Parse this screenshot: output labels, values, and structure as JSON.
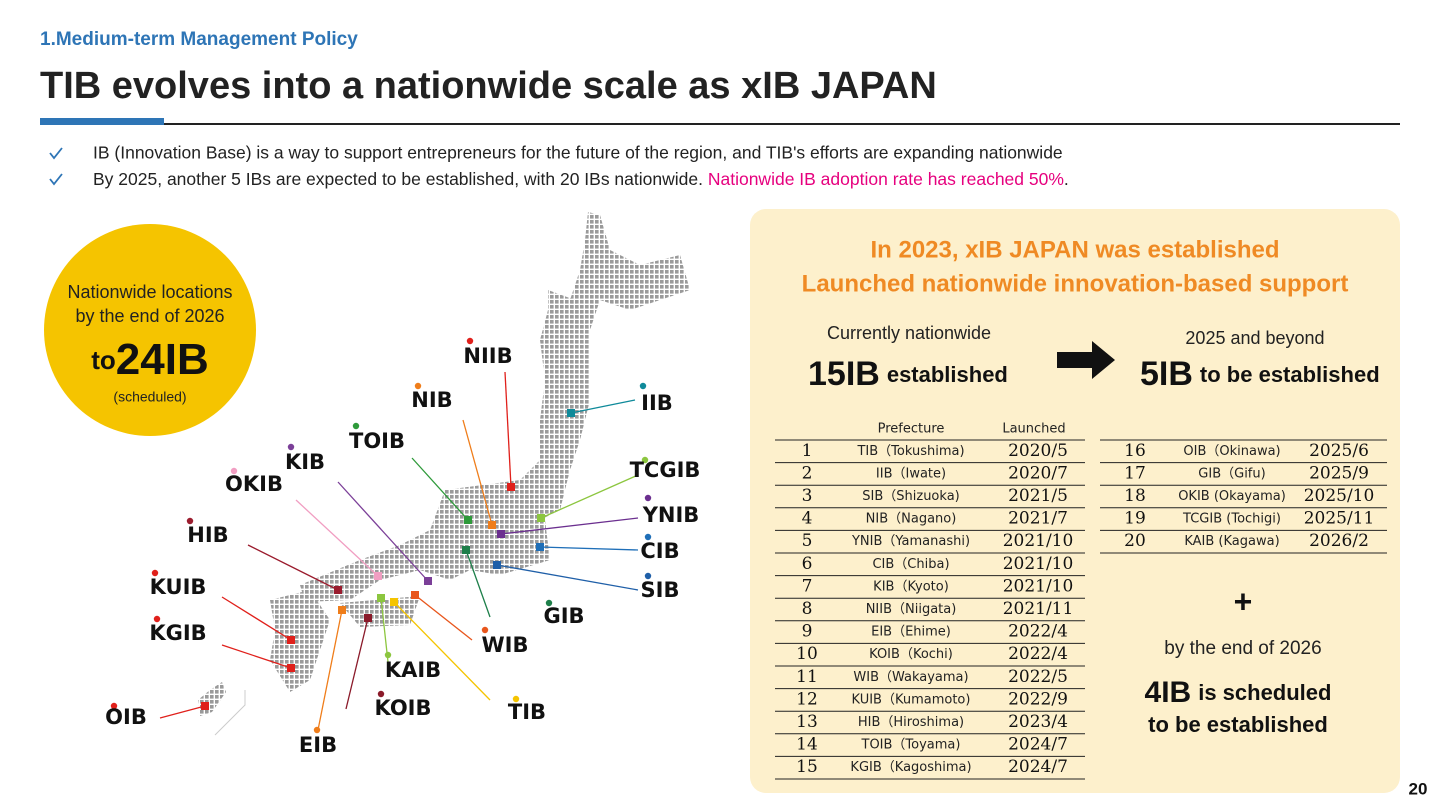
{
  "header": {
    "section": "1.Medium-term Management Policy",
    "title": "TIB evolves into a nationwide scale as xIB JAPAN"
  },
  "bullets": [
    {
      "text": "IB (Innovation Base) is a way to support entrepreneurs for the future of the region, and TIB's efforts are expanding nationwide"
    },
    {
      "text": "By 2025, another 5 IBs are expected to be established, with 20 IBs nationwide. ",
      "highlight": "Nationwide IB adoption rate has reached 50%",
      "tail": "."
    }
  ],
  "circle": {
    "line1": "Nationwide locations",
    "line2": "by the end of 2026",
    "prefix": "to",
    "count": "24IB",
    "note": "(scheduled)"
  },
  "map_labels": [
    {
      "label": "NIIB",
      "color": "#e0201b"
    },
    {
      "label": "NIB",
      "color": "#ef7d1a"
    },
    {
      "label": "TOIB",
      "color": "#2e9a3a"
    },
    {
      "label": "KIB",
      "color": "#7b3f98"
    },
    {
      "label": "OKIB",
      "color": "#f19ec2"
    },
    {
      "label": "HIB",
      "color": "#9b1c2e"
    },
    {
      "label": "KUIB",
      "color": "#e0201b"
    },
    {
      "label": "KGIB",
      "color": "#e0201b"
    },
    {
      "label": "OIB",
      "color": "#e0201b"
    },
    {
      "label": "EIB",
      "color": "#ef7d1a"
    },
    {
      "label": "KOIB",
      "color": "#8b1a2a"
    },
    {
      "label": "KAIB",
      "color": "#8cc63f"
    },
    {
      "label": "TIB",
      "color": "#f5c400"
    },
    {
      "label": "WIB",
      "color": "#e8561c"
    },
    {
      "label": "GIB",
      "color": "#1e7f4a"
    },
    {
      "label": "SIB",
      "color": "#1f5fa8"
    },
    {
      "label": "CIB",
      "color": "#1f6fb8"
    },
    {
      "label": "YNIB",
      "color": "#6b2f8f"
    },
    {
      "label": "TCGIB",
      "color": "#8cc63f"
    },
    {
      "label": "IIB",
      "color": "#0f8a9a"
    }
  ],
  "panel": {
    "title1": "In 2023, xIB JAPAN was established",
    "title2": "Launched nationwide innovation-based support",
    "current_label": "Currently nationwide",
    "current_count": "15IB",
    "current_suffix": "established",
    "future_label": "2025 and beyond",
    "future_count": "5IB",
    "future_suffix": "to be established",
    "plus": "+",
    "scheduled_label": "by the end of 2026",
    "scheduled_count": "4IB",
    "scheduled_suffix": "is scheduled",
    "scheduled_line2": "to be established",
    "table1": {
      "header": [
        "Prefecture",
        "Launched"
      ],
      "rows": [
        [
          "1",
          "TIB（Tokushima)",
          "2020/5"
        ],
        [
          "2",
          "IIB（Iwate)",
          "2020/7"
        ],
        [
          "3",
          "SIB（Shizuoka)",
          "2021/5"
        ],
        [
          "4",
          "NIB（Nagano)",
          "2021/7"
        ],
        [
          "5",
          "YNIB（Yamanashi)",
          "2021/10"
        ],
        [
          "6",
          "CIB（Chiba)",
          "2021/10"
        ],
        [
          "7",
          "KIB（Kyoto)",
          "2021/10"
        ],
        [
          "8",
          "NIIB（Niigata)",
          "2021/11"
        ],
        [
          "9",
          "EIB（Ehime)",
          "2022/4"
        ],
        [
          "10",
          "KOIB（Kochi)",
          "2022/4"
        ],
        [
          "11",
          "WIB（Wakayama)",
          "2022/5"
        ],
        [
          "12",
          "KUIB（Kumamoto)",
          "2022/9"
        ],
        [
          "13",
          "HIB（Hiroshima)",
          "2023/4"
        ],
        [
          "14",
          "TOIB（Toyama)",
          "2024/7"
        ],
        [
          "15",
          "KGIB（Kagoshima)",
          "2024/7"
        ]
      ]
    },
    "table2": {
      "rows": [
        [
          "16",
          "OIB（Okinawa)",
          "2025/6"
        ],
        [
          "17",
          "GIB（Gifu)",
          "2025/9"
        ],
        [
          "18",
          "OKIB (Okayama)",
          "2025/10"
        ],
        [
          "19",
          "TCGIB (Tochigi)",
          "2025/11"
        ],
        [
          "20",
          "KAIB (Kagawa)",
          "2026/2"
        ]
      ]
    }
  },
  "page_number": "20"
}
